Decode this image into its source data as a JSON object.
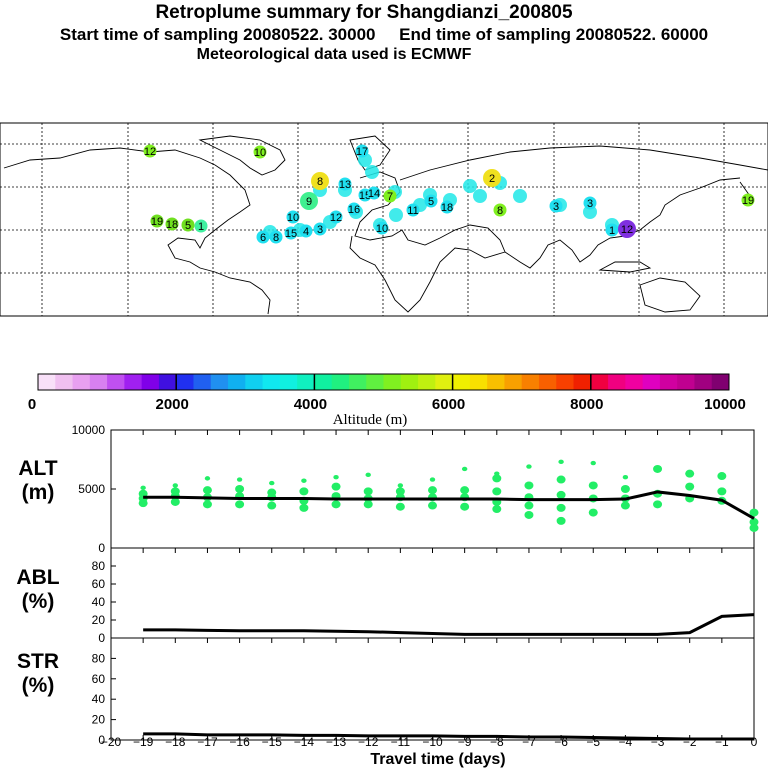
{
  "header": {
    "title": "Retroplume summary for Shangdianzi_200805",
    "subtitle_start": "Start time of sampling 20080522. 30000",
    "subtitle_end": "End time of sampling 20080522. 60000",
    "met": "Meteorological data used is ECMWF"
  },
  "colors": {
    "plume": "#22ee66",
    "line": "#000000"
  },
  "colorbar": {
    "label": "Altitude (m)",
    "ticks": [
      "0",
      "2000",
      "4000",
      "6000",
      "8000",
      "10000"
    ],
    "colors": [
      "#f8e0f8",
      "#f0c0f0",
      "#e8a0f0",
      "#d880f0",
      "#c050f0",
      "#a020f0",
      "#8000e8",
      "#4010e0",
      "#2030f0",
      "#2060f0",
      "#2090f0",
      "#10b0f0",
      "#10d0f0",
      "#10e8f0",
      "#10f0e0",
      "#10f0c0",
      "#10f0a0",
      "#20f080",
      "#40f060",
      "#60f040",
      "#80f020",
      "#a0f010",
      "#c0f010",
      "#e0f010",
      "#f0f000",
      "#f8e000",
      "#f8c000",
      "#f8a000",
      "#f88000",
      "#f86000",
      "#f84000",
      "#f02000",
      "#f00040",
      "#f00080",
      "#f000a0",
      "#e000c0",
      "#d000a0",
      "#c00090",
      "#a00080",
      "#800070"
    ]
  },
  "map": {
    "labels": [
      {
        "t": "19",
        "c": "#70e020"
      },
      {
        "t": "18",
        "c": "#70e020"
      },
      {
        "t": "5",
        "c": "#70e020"
      },
      {
        "t": "1",
        "c": "#40f0a0"
      },
      {
        "t": "6",
        "c": "#20e0f0"
      },
      {
        "t": "8",
        "c": "#20e0f0"
      },
      {
        "t": "15",
        "c": "#20e0f0"
      },
      {
        "t": "4",
        "c": "#20e0f0"
      },
      {
        "t": "3",
        "c": "#20e0f0"
      },
      {
        "t": "10",
        "c": "#20e0f0"
      },
      {
        "t": "9",
        "c": "#40f090"
      },
      {
        "t": "12",
        "c": "#20e0f0"
      },
      {
        "t": "16",
        "c": "#20e0f0"
      },
      {
        "t": "10",
        "c": "#20e0f0"
      },
      {
        "t": "8",
        "c": "#f0e020"
      },
      {
        "t": "13",
        "c": "#20e0f0"
      },
      {
        "t": "15",
        "c": "#20e0f0"
      },
      {
        "t": "14",
        "c": "#20e0f0"
      },
      {
        "t": "17",
        "c": "#20e0f0"
      },
      {
        "t": "7",
        "c": "#80f020"
      },
      {
        "t": "11",
        "c": "#20e0f0"
      },
      {
        "t": "5",
        "c": "#20e0f0"
      },
      {
        "t": "18",
        "c": "#20e0f0"
      },
      {
        "t": "2",
        "c": "#f0e020"
      },
      {
        "t": "3",
        "c": "#20e0f0"
      },
      {
        "t": "3",
        "c": "#20e0f0"
      },
      {
        "t": "1",
        "c": "#20e0f0"
      },
      {
        "t": "12",
        "c": "#8030e0"
      },
      {
        "t": "8",
        "c": "#80f020"
      },
      {
        "t": "12",
        "c": "#80f020"
      },
      {
        "t": "10",
        "c": "#80f020"
      },
      {
        "t": "19",
        "c": "#80f020"
      }
    ]
  },
  "panels": {
    "alt": {
      "label1": "ALT",
      "label2": "(m)",
      "ticks": [
        "10000",
        "5000",
        "0"
      ]
    },
    "abl": {
      "label1": "ABL",
      "label2": "(%)",
      "ticks": [
        "80",
        "60",
        "40",
        "20",
        "0"
      ]
    },
    "str": {
      "label1": "STR",
      "label2": "(%)",
      "ticks": [
        "80",
        "60",
        "40",
        "20",
        "0"
      ]
    }
  },
  "xaxis": {
    "label": "Travel time (days)",
    "ticks": [
      "−20",
      "−19",
      "−18",
      "−17",
      "−16",
      "−15",
      "−14",
      "−13",
      "−12",
      "−11",
      "−10",
      "−9",
      "−8",
      "−7",
      "−6",
      "−5",
      "−4",
      "−3",
      "−2",
      "−1",
      "0"
    ]
  },
  "chart_data": {
    "type": "line",
    "x": [
      -19,
      -18,
      -17,
      -16,
      -15,
      -14,
      -13,
      -12,
      -11,
      -10,
      -9,
      -8,
      -7,
      -6,
      -5,
      -4,
      -3,
      -2,
      -1,
      0
    ],
    "series": [
      {
        "name": "ALT (m)",
        "values": [
          4300,
          4300,
          4250,
          4200,
          4200,
          4200,
          4150,
          4150,
          4150,
          4150,
          4150,
          4150,
          4100,
          4100,
          4100,
          4150,
          4750,
          4450,
          4050,
          2500
        ]
      },
      {
        "name": "ABL (%)",
        "values": [
          9,
          9,
          8.5,
          8,
          8,
          8,
          7.5,
          7,
          6,
          5,
          4,
          4,
          4,
          4,
          4,
          4,
          4,
          6,
          24,
          26
        ]
      },
      {
        "name": "STR (%)",
        "values": [
          6,
          6,
          5,
          5,
          5,
          4.5,
          4.5,
          4,
          4,
          4,
          3.5,
          3.5,
          3,
          3,
          2.5,
          2,
          1.5,
          1,
          1,
          1
        ]
      }
    ],
    "alt_clusters": [
      {
        "x": -19,
        "y": [
          5100,
          4600,
          4200,
          3800
        ]
      },
      {
        "x": -18,
        "y": [
          5300,
          4800,
          4400,
          3900
        ]
      },
      {
        "x": -17,
        "y": [
          5900,
          4900,
          4300,
          3700
        ]
      },
      {
        "x": -16,
        "y": [
          5800,
          5000,
          4400,
          3700
        ]
      },
      {
        "x": -15,
        "y": [
          5500,
          4700,
          4300,
          3600
        ]
      },
      {
        "x": -14,
        "y": [
          5700,
          4800,
          4000,
          3400
        ]
      },
      {
        "x": -13,
        "y": [
          6000,
          5200,
          4400,
          3700
        ]
      },
      {
        "x": -12,
        "y": [
          6200,
          4800,
          4200,
          3700
        ]
      },
      {
        "x": -11,
        "y": [
          5300,
          4800,
          4300,
          3500
        ]
      },
      {
        "x": -10,
        "y": [
          5800,
          4900,
          4300,
          3600
        ]
      },
      {
        "x": -9,
        "y": [
          6700,
          4900,
          4300,
          3500
        ]
      },
      {
        "x": -8,
        "y": [
          6300,
          5900,
          4800,
          3900,
          3300
        ]
      },
      {
        "x": -7,
        "y": [
          6900,
          5300,
          4300,
          3600,
          2800
        ]
      },
      {
        "x": -6,
        "y": [
          7300,
          5800,
          4500,
          3400,
          2300
        ]
      },
      {
        "x": -5,
        "y": [
          7200,
          5300,
          4200,
          3000
        ]
      },
      {
        "x": -4,
        "y": [
          6000,
          5000,
          4200,
          3600
        ]
      },
      {
        "x": -3,
        "y": [
          6700,
          4600,
          3700
        ]
      },
      {
        "x": -2,
        "y": [
          6300,
          5200,
          4200
        ]
      },
      {
        "x": -1,
        "y": [
          6100,
          4800,
          4000
        ]
      },
      {
        "x": 0,
        "y": [
          3000,
          2200,
          1700
        ]
      }
    ],
    "title": "Retroplume summary for Shangdianzi_200805",
    "xlabel": "Travel time (days)",
    "xlim": [
      -20,
      0
    ],
    "ylim_alt": [
      0,
      10000
    ],
    "ylim_pct": [
      0,
      100
    ]
  }
}
